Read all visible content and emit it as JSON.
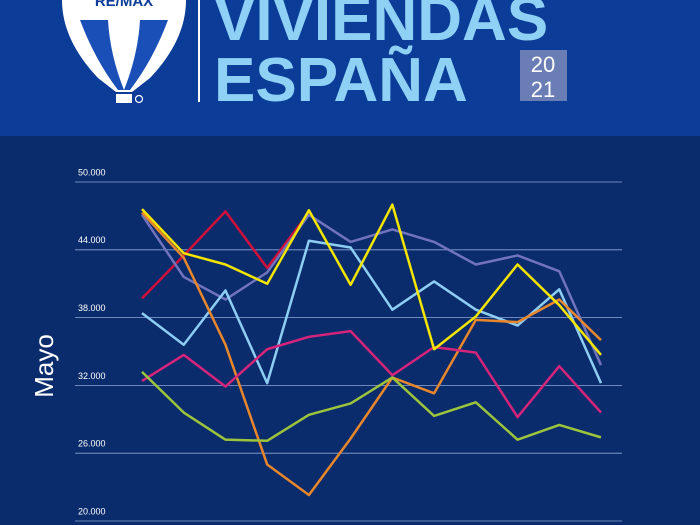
{
  "header": {
    "brand": "RE/MAX",
    "title_line1": "VIVIENDAS",
    "title_line2": "ESPAÑA",
    "year_top": "20",
    "year_bottom": "21"
  },
  "chart_data": {
    "type": "line",
    "ylabel": "Mayo",
    "categories": [
      null,
      null,
      null,
      null,
      null,
      null,
      null,
      null,
      null,
      null,
      null,
      null
    ],
    "series": [
      {
        "color": "#d0103a",
        "values": [
          39700,
          43500,
          47400,
          42400,
          47300,
          null,
          null,
          null,
          null,
          null,
          null,
          null
        ]
      },
      {
        "color": "#7273bd",
        "values": [
          47100,
          41600,
          39600,
          42000,
          47100,
          44700,
          45800,
          44700,
          42700,
          43500,
          42100,
          33800
        ]
      },
      {
        "color": "#8ecdf4",
        "values": [
          38400,
          35600,
          40400,
          32200,
          44800,
          44200,
          38700,
          41200,
          38700,
          37300,
          40500,
          32200
        ]
      },
      {
        "color": "#e8862c",
        "values": [
          47300,
          43300,
          35600,
          25000,
          22300,
          27300,
          32700,
          31300,
          37800,
          37600,
          39600,
          36000
        ]
      },
      {
        "color": "#d6247a",
        "values": [
          32400,
          34700,
          31900,
          35200,
          36300,
          36800,
          32900,
          35400,
          34900,
          29200,
          33700,
          29600
        ]
      },
      {
        "color": "#9cc43c",
        "values": [
          33200,
          29600,
          27200,
          27100,
          29400,
          30400,
          32700,
          29300,
          30500,
          27200,
          28500,
          27400
        ]
      },
      {
        "color": "#f3e500",
        "values": [
          47600,
          43700,
          42700,
          41000,
          47500,
          40900,
          48000,
          35200,
          38100,
          42700,
          39100,
          34700
        ]
      }
    ],
    "ylim": [
      20000,
      50000
    ],
    "yticks": [
      {
        "value": 20000,
        "label": "20.000"
      },
      {
        "value": 26000,
        "label": "26.000"
      },
      {
        "value": 32000,
        "label": "32.000"
      },
      {
        "value": 38000,
        "label": "38.000"
      },
      {
        "value": 44000,
        "label": "44.000"
      },
      {
        "value": 50000,
        "label": "50.000"
      }
    ],
    "grid": true
  }
}
